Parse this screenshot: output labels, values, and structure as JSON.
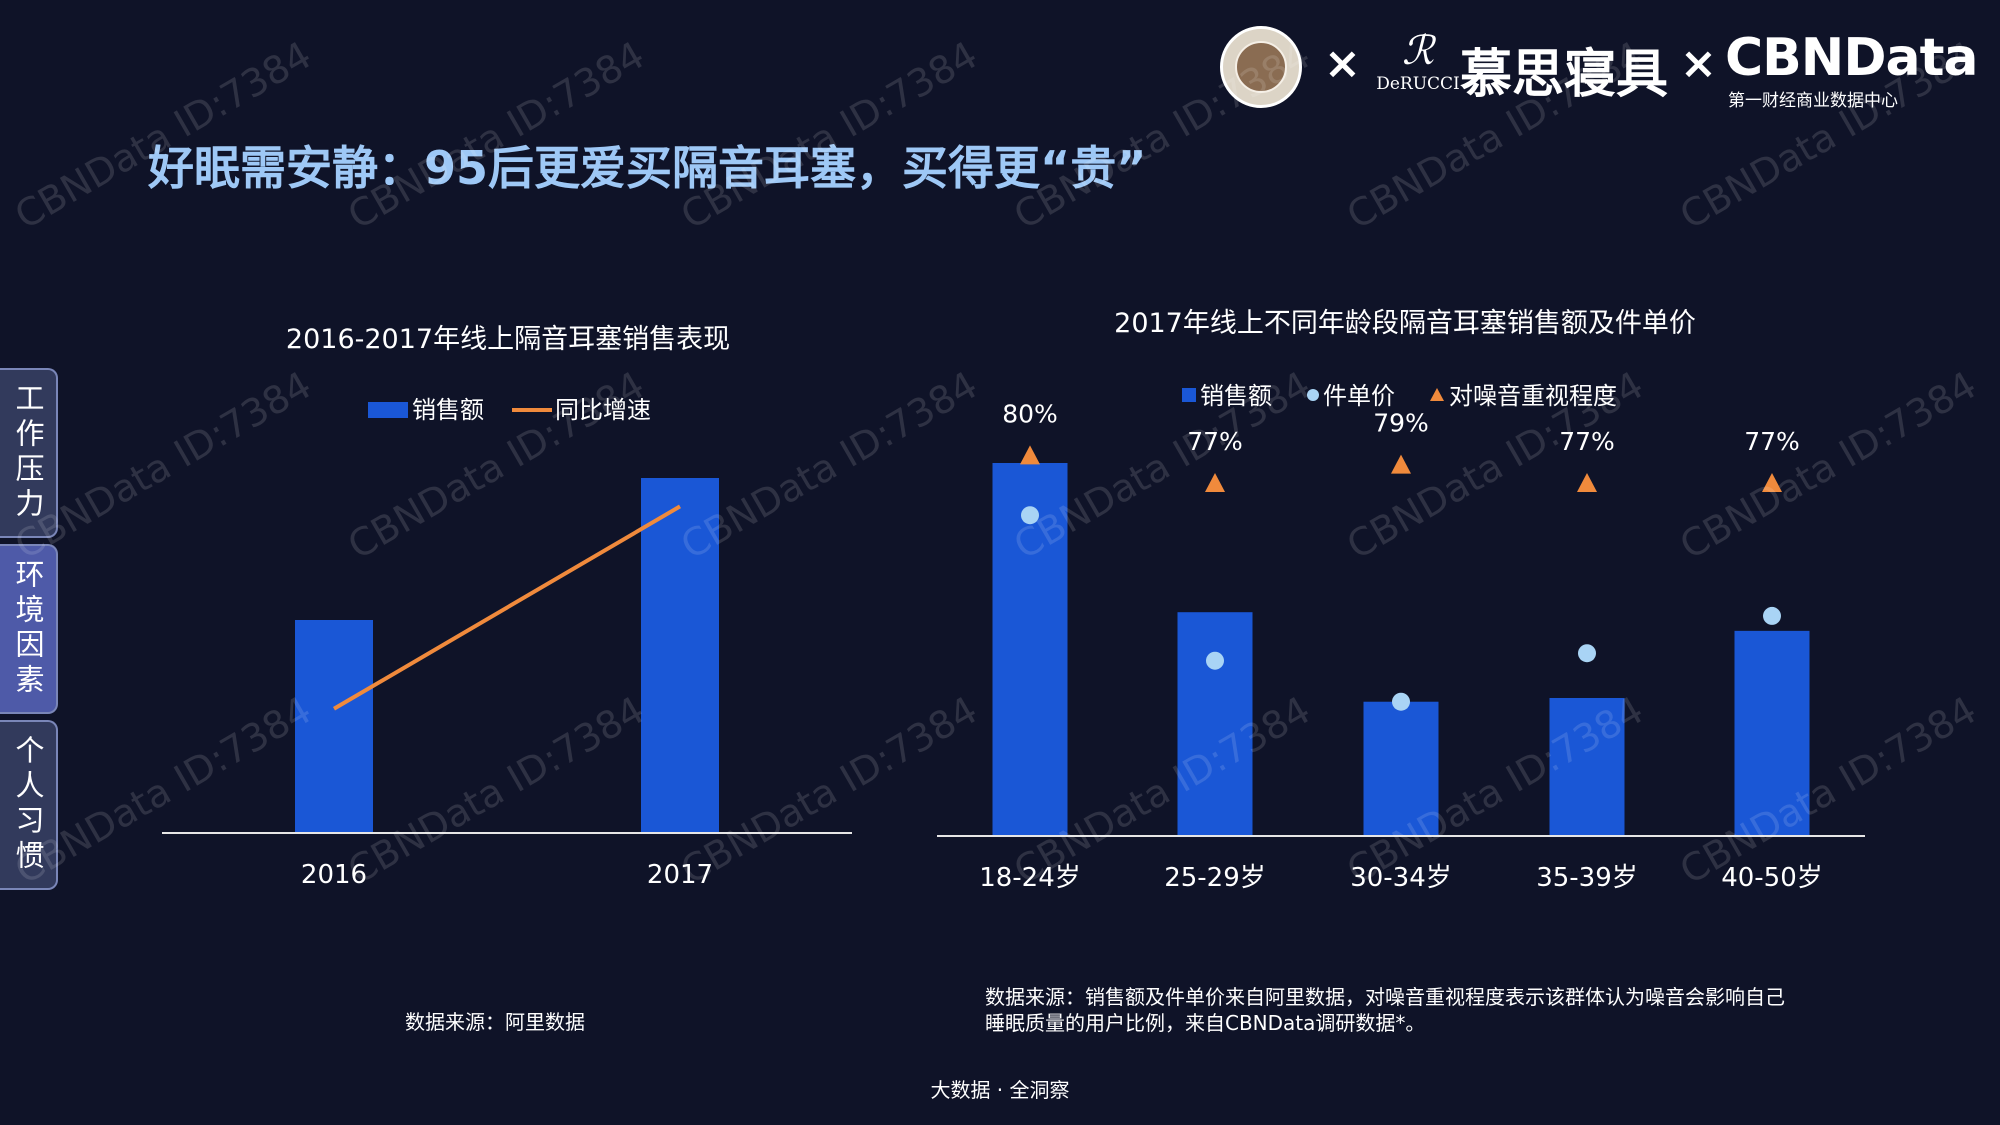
{
  "header": {
    "title": "好眠需安静：95后更爱买隔音耳塞，买得更“贵”",
    "logos": {
      "times_symbol": "×",
      "derucci_mark": "ℛ",
      "derucci_text": "DeRUCCI",
      "brand_cn": "慕思寝具",
      "cbndata": "CBNData",
      "cbndata_sub": "第一财经商业数据中心"
    }
  },
  "side_tabs": [
    {
      "label": "工作压力"
    },
    {
      "label": "环境因素"
    },
    {
      "label": "个人习惯"
    }
  ],
  "watermark_text": "CBNData ID:7384",
  "chart_data": [
    {
      "type": "bar",
      "title": "2016-2017年线上隔音耳塞销售表现",
      "categories": [
        "2016",
        "2017"
      ],
      "series": [
        {
          "name": "销售额",
          "values": [
            0.6,
            1.0
          ]
        },
        {
          "name": "同比增速",
          "type": "line",
          "values": [
            0.35,
            0.92
          ]
        }
      ],
      "legend_position": "top-center",
      "colors": {
        "bar": "#1a57d6",
        "line": "#f08a3c"
      },
      "grid": false,
      "source": "数据来源：阿里数据"
    },
    {
      "type": "bar",
      "title": "2017年线上不同年龄段隔音耳塞销售额及件单价",
      "categories": [
        "18-24岁",
        "25-29岁",
        "30-34岁",
        "35-39岁",
        "40-50岁"
      ],
      "series": [
        {
          "name": "销售额",
          "values": [
            1.0,
            0.6,
            0.36,
            0.37,
            0.55
          ]
        },
        {
          "name": "件单价",
          "type": "scatter",
          "values": [
            0.86,
            0.47,
            0.36,
            0.49,
            0.59
          ]
        },
        {
          "name": "对噪音重视程度",
          "type": "scatter",
          "values": [
            80,
            77,
            79,
            77,
            77
          ],
          "labels": [
            "80%",
            "77%",
            "79%",
            "77%",
            "77%"
          ]
        }
      ],
      "legend_position": "top-center",
      "colors": {
        "bar": "#1a57d6",
        "dot": "#a9d4f5",
        "triangle": "#f08a3c"
      },
      "grid": false,
      "source": "数据来源：销售额及件单价来自阿里数据，对噪音重视程度表示该群体认为噪音会影响自己睡眠质量的用户比例，来自CBNData调研数据*。"
    }
  ],
  "source_right_line1": "数据来源：销售额及件单价来自阿里数据，对噪音重视程度表示该群体认为噪音会影响自己",
  "source_right_line2": "睡眠质量的用户比例，来自CBNData调研数据*。",
  "footer": "大数据 · 全洞察"
}
